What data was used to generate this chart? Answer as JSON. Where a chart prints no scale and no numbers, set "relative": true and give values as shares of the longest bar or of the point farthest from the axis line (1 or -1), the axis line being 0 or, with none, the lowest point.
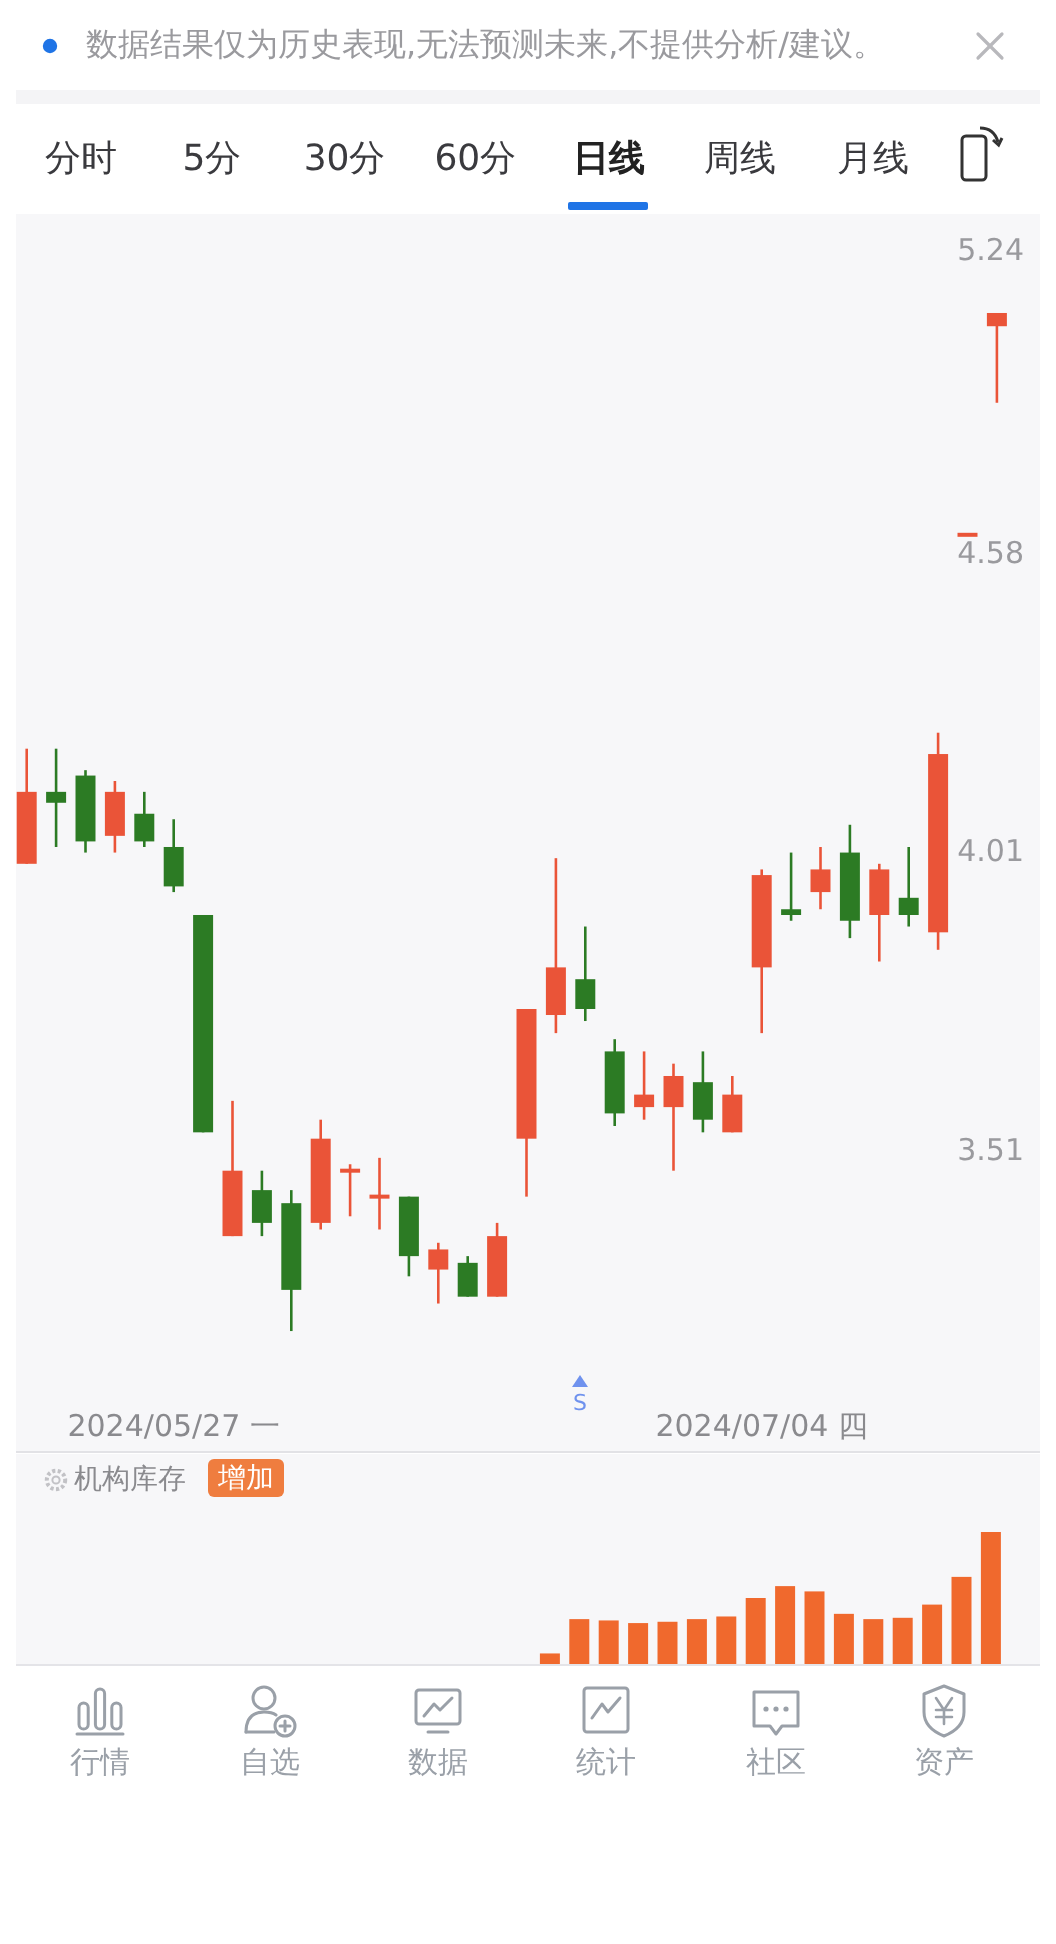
{
  "chart_data": [
    {
      "type": "candlestick",
      "annotations": [
        "数据结果仅为历史表现,无法预测未来,不提供分析/建议。",
        "分时",
        "5分",
        "30分",
        "60分",
        "日线",
        "周线",
        "月线",
        "S"
      ],
      "categories": [
        null,
        null,
        null,
        null,
        null,
        "2024/05/27 一",
        null,
        null,
        null,
        null,
        null,
        null,
        null,
        null,
        null,
        null,
        null,
        null,
        null,
        null,
        null,
        null,
        null,
        null,
        null,
        "2024/07/04 四",
        null,
        null,
        null,
        null,
        null,
        null,
        null,
        null
      ],
      "ohlc": [
        [
          3.99,
          4.2,
          3.99,
          4.12
        ],
        [
          4.12,
          4.2,
          4.02,
          4.1
        ],
        [
          4.15,
          4.16,
          4.01,
          4.03
        ],
        [
          4.04,
          4.14,
          4.01,
          4.12
        ],
        [
          4.08,
          4.12,
          4.02,
          4.03
        ],
        [
          4.02,
          4.07,
          3.94,
          3.95
        ],
        [
          3.9,
          3.9,
          3.54,
          3.54
        ],
        [
          3.38,
          3.59,
          3.38,
          3.48
        ],
        [
          3.45,
          3.48,
          3.38,
          3.4
        ],
        [
          3.43,
          3.45,
          3.24,
          3.3
        ],
        [
          3.4,
          3.56,
          3.39,
          3.53
        ],
        [
          3.48,
          3.49,
          3.41,
          3.48
        ],
        [
          3.44,
          3.5,
          3.39,
          3.44
        ],
        [
          3.44,
          3.44,
          3.32,
          3.35
        ],
        [
          3.33,
          3.37,
          3.28,
          3.36
        ],
        [
          3.34,
          3.35,
          3.29,
          3.29
        ],
        [
          3.29,
          3.4,
          3.29,
          3.38
        ],
        [
          3.53,
          3.74,
          3.44,
          3.74
        ],
        [
          3.73,
          4.0,
          3.7,
          3.81
        ],
        [
          3.79,
          3.88,
          3.72,
          3.74
        ],
        [
          3.67,
          3.69,
          3.55,
          3.57
        ],
        [
          3.58,
          3.67,
          3.56,
          3.6
        ],
        [
          3.58,
          3.65,
          3.48,
          3.63
        ],
        [
          3.62,
          3.67,
          3.54,
          3.56
        ],
        [
          3.54,
          3.63,
          3.54,
          3.6
        ],
        [
          3.81,
          3.98,
          3.7,
          3.97
        ],
        [
          3.91,
          4.01,
          3.89,
          3.9
        ],
        [
          3.94,
          4.02,
          3.91,
          3.98
        ],
        [
          4.01,
          4.06,
          3.86,
          3.89
        ],
        [
          3.9,
          3.99,
          3.82,
          3.98
        ],
        [
          3.93,
          4.02,
          3.88,
          3.9
        ],
        [
          3.87,
          4.23,
          3.84,
          4.19
        ],
        [
          4.62,
          4.62,
          4.62,
          4.62
        ],
        [
          5.07,
          5.1,
          4.9,
          5.1
        ]
      ],
      "colors": [
        "#ea5438",
        "#2c7b24",
        "#2c7b24",
        "#ea5438",
        "#2c7b24",
        "#2c7b24",
        "#2c7b24",
        "#ea5438",
        "#2c7b24",
        "#2c7b24",
        "#ea5438",
        "#ea5438",
        "#ea5438",
        "#2c7b24",
        "#ea5438",
        "#2c7b24",
        "#ea5438",
        "#ea5438",
        "#ea5438",
        "#2c7b24",
        "#2c7b24",
        "#ea5438",
        "#ea5438",
        "#2c7b24",
        "#ea5438",
        "#ea5438",
        "#2c7b24",
        "#ea5438",
        "#2c7b24",
        "#ea5438",
        "#2c7b24",
        "#ea5438",
        "#ea5438",
        "#ea5438"
      ],
      "log": true,
      "ylim": [
        3.07,
        5.33
      ],
      "yticks": [
        3.51,
        4.01,
        4.58,
        5.24
      ]
    },
    {
      "type": "bar",
      "title": "机构库存",
      "annotations": [
        "增加"
      ],
      "categories": [
        null,
        null,
        null,
        null,
        null,
        null,
        null,
        null,
        null,
        null,
        null,
        null,
        null,
        null,
        null,
        null,
        null,
        null,
        null,
        null,
        null,
        null,
        null,
        null,
        null,
        null,
        null,
        null,
        null,
        null,
        null,
        null,
        null,
        null
      ],
      "values": [
        null,
        null,
        null,
        null,
        null,
        null,
        null,
        null,
        null,
        null,
        null,
        null,
        null,
        null,
        null,
        null,
        null,
        null,
        0.08,
        0.34,
        0.33,
        0.31,
        0.32,
        0.34,
        0.36,
        0.5,
        0.59,
        0.55,
        0.38,
        0.34,
        0.35,
        0.45,
        0.66,
        1
      ],
      "color": "#f0692d",
      "relative": true
    },
    {
      "type": "other",
      "annotations": [
        "行情",
        "自选",
        "数据",
        "统计",
        "社区",
        "资产"
      ]
    }
  ]
}
